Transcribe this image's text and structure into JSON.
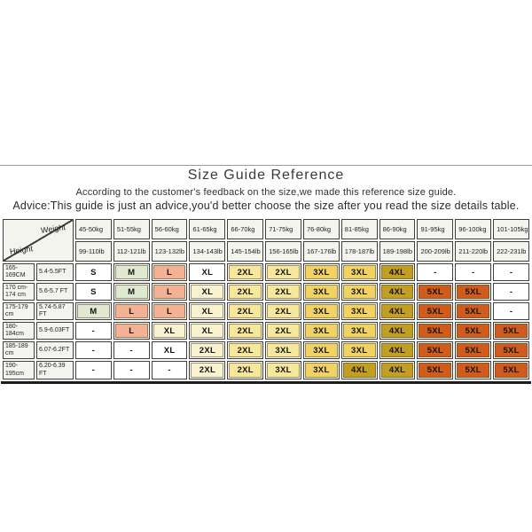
{
  "header": {
    "title": "Size Guide Reference",
    "subtitle1": "According to the customer's feedback on the size,we made this reference size guide.",
    "subtitle2": "Advice:This guide is just an advice,you'd better choose the size after you read the size details table."
  },
  "table": {
    "corner": {
      "weight": "Weight",
      "height": "Height"
    },
    "colors": {
      "w": "#ffffff",
      "g": "#dfe9d2",
      "p": "#f4b294",
      "c": "#f9f2d0",
      "y": "#f7e79c",
      "d": "#f1d365",
      "o": "#c29e22",
      "r": "#cf5b1c"
    },
    "weight_columns": [
      {
        "kg": "45-50kg",
        "lb": "99-110lb"
      },
      {
        "kg": "51-55kg",
        "lb": "112-121lb"
      },
      {
        "kg": "56-60kg",
        "lb": "123-132lb"
      },
      {
        "kg": "61-65kg",
        "lb": "134-143lb"
      },
      {
        "kg": "66-70kg",
        "lb": "145-154lb"
      },
      {
        "kg": "71-75kg",
        "lb": "156-165lb"
      },
      {
        "kg": "76-80kg",
        "lb": "167-176lb"
      },
      {
        "kg": "81-85kg",
        "lb": "178-187lb"
      },
      {
        "kg": "86-90kg",
        "lb": "189-198lb"
      },
      {
        "kg": "91-95kg",
        "lb": "200-209lb"
      },
      {
        "kg": "96-100kg",
        "lb": "211-220lb"
      },
      {
        "kg": "101-105kg",
        "lb": "222-231lb"
      }
    ],
    "rows": [
      {
        "height_cm": "165-169CM",
        "height_ft": "5.4-5.5FT",
        "cells": [
          {
            "label": "S",
            "color": "w"
          },
          {
            "label": "M",
            "color": "g"
          },
          {
            "label": "L",
            "color": "p"
          },
          {
            "label": "XL",
            "color": "w"
          },
          {
            "label": "2XL",
            "color": "y"
          },
          {
            "label": "2XL",
            "color": "y"
          },
          {
            "label": "3XL",
            "color": "d"
          },
          {
            "label": "3XL",
            "color": "d"
          },
          {
            "label": "4XL",
            "color": "o"
          },
          {
            "label": "-",
            "color": "w"
          },
          {
            "label": "-",
            "color": "w"
          },
          {
            "label": "-",
            "color": "w"
          }
        ]
      },
      {
        "height_cm": "170 cm-174 cm",
        "height_ft": "5.6-5.7 FT",
        "cells": [
          {
            "label": "S",
            "color": "w"
          },
          {
            "label": "M",
            "color": "g"
          },
          {
            "label": "L",
            "color": "p"
          },
          {
            "label": "XL",
            "color": "c"
          },
          {
            "label": "2XL",
            "color": "y"
          },
          {
            "label": "2XL",
            "color": "y"
          },
          {
            "label": "3XL",
            "color": "d"
          },
          {
            "label": "3XL",
            "color": "d"
          },
          {
            "label": "4XL",
            "color": "o"
          },
          {
            "label": "5XL",
            "color": "r"
          },
          {
            "label": "5XL",
            "color": "r"
          },
          {
            "label": "-",
            "color": "w"
          }
        ]
      },
      {
        "height_cm": "175-179 cm",
        "height_ft": "5.74-5.87 FT",
        "cells": [
          {
            "label": "M",
            "color": "g"
          },
          {
            "label": "L",
            "color": "p"
          },
          {
            "label": "L",
            "color": "p"
          },
          {
            "label": "XL",
            "color": "c"
          },
          {
            "label": "2XL",
            "color": "y"
          },
          {
            "label": "2XL",
            "color": "y"
          },
          {
            "label": "3XL",
            "color": "d"
          },
          {
            "label": "3XL",
            "color": "d"
          },
          {
            "label": "4XL",
            "color": "o"
          },
          {
            "label": "5XL",
            "color": "r"
          },
          {
            "label": "5XL",
            "color": "r"
          },
          {
            "label": "-",
            "color": "w"
          }
        ]
      },
      {
        "height_cm": "180-184cm",
        "height_ft": "5.9-6.03FT",
        "cells": [
          {
            "label": "-",
            "color": "w"
          },
          {
            "label": "L",
            "color": "p"
          },
          {
            "label": "XL",
            "color": "c"
          },
          {
            "label": "XL",
            "color": "c"
          },
          {
            "label": "2XL",
            "color": "y"
          },
          {
            "label": "2XL",
            "color": "y"
          },
          {
            "label": "3XL",
            "color": "d"
          },
          {
            "label": "3XL",
            "color": "d"
          },
          {
            "label": "4XL",
            "color": "o"
          },
          {
            "label": "5XL",
            "color": "r"
          },
          {
            "label": "5XL",
            "color": "r"
          },
          {
            "label": "5XL",
            "color": "r"
          }
        ]
      },
      {
        "height_cm": "185-189 cm",
        "height_ft": "6.07-6.2FT",
        "cells": [
          {
            "label": "-",
            "color": "w"
          },
          {
            "label": "-",
            "color": "w"
          },
          {
            "label": "XL",
            "color": "w"
          },
          {
            "label": "2XL",
            "color": "c"
          },
          {
            "label": "2XL",
            "color": "y"
          },
          {
            "label": "3XL",
            "color": "y"
          },
          {
            "label": "3XL",
            "color": "d"
          },
          {
            "label": "3XL",
            "color": "d"
          },
          {
            "label": "4XL",
            "color": "o"
          },
          {
            "label": "5XL",
            "color": "r"
          },
          {
            "label": "5XL",
            "color": "r"
          },
          {
            "label": "5XL",
            "color": "r"
          }
        ]
      },
      {
        "height_cm": "190-195cm",
        "height_ft": "6.20-6.39 FT",
        "cells": [
          {
            "label": "-",
            "color": "w"
          },
          {
            "label": "-",
            "color": "w"
          },
          {
            "label": "-",
            "color": "w"
          },
          {
            "label": "2XL",
            "color": "c"
          },
          {
            "label": "2XL",
            "color": "y"
          },
          {
            "label": "3XL",
            "color": "y"
          },
          {
            "label": "3XL",
            "color": "d"
          },
          {
            "label": "4XL",
            "color": "o"
          },
          {
            "label": "4XL",
            "color": "o"
          },
          {
            "label": "5XL",
            "color": "r"
          },
          {
            "label": "5XL",
            "color": "r"
          },
          {
            "label": "5XL",
            "color": "r"
          }
        ]
      }
    ]
  }
}
